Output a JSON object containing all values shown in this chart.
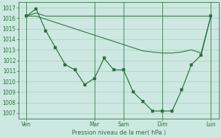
{
  "xlabel": "Pression niveau de la mer( hPa )",
  "bg_color": "#cce8e0",
  "grid_color": "#aaccc4",
  "line_color": "#2d6e40",
  "ylim": [
    1006.5,
    1017.5
  ],
  "yticks": [
    1007,
    1008,
    1009,
    1010,
    1011,
    1012,
    1013,
    1014,
    1015,
    1016,
    1017
  ],
  "xlim": [
    -0.3,
    20.3
  ],
  "day_labels": [
    "Ven",
    "Mar",
    "Sam",
    "Dim",
    "Lun"
  ],
  "day_positions": [
    0.5,
    7.5,
    10.5,
    14.5,
    19.5
  ],
  "line1_x": [
    0.5,
    1.5,
    2.5,
    3.5,
    4.5,
    5.5,
    6.5,
    7.5,
    8.5,
    9.5,
    10.5,
    11.5,
    12.5,
    13.5,
    14.5,
    15.5,
    16.5,
    17.5,
    18.5,
    19.5
  ],
  "line1_y": [
    1016.2,
    1016.9,
    1014.8,
    1013.2,
    1011.6,
    1011.1,
    1009.7,
    1010.3,
    1012.2,
    1011.1,
    1011.1,
    1009.0,
    1008.1,
    1007.2,
    1007.2,
    1007.2,
    1009.2,
    1011.6,
    1012.5,
    1016.2
  ],
  "line2_x": [
    0.5,
    1.5,
    2.5,
    3.5,
    4.5,
    5.5,
    6.5,
    7.5,
    8.5,
    9.5,
    10.5,
    11.5,
    12.5,
    13.5,
    14.5,
    15.5,
    16.5,
    17.5,
    18.5,
    19.5
  ],
  "line2_y": [
    1016.2,
    1016.5,
    1016.2,
    1016.2,
    1016.2,
    1016.2,
    1016.2,
    1016.2,
    1016.2,
    1016.2,
    1016.2,
    1016.2,
    1016.2,
    1016.2,
    1016.2,
    1016.2,
    1016.2,
    1016.2,
    1016.2,
    1016.2
  ],
  "line3_x": [
    0.5,
    1.5,
    2.5,
    3.5,
    4.5,
    5.5,
    6.5,
    7.5,
    8.5,
    9.5,
    10.5,
    11.5,
    12.5,
    13.5,
    14.5,
    15.5,
    16.5,
    17.5,
    18.5,
    19.5
  ],
  "line3_y": [
    1016.2,
    1016.2,
    1015.9,
    1015.6,
    1015.3,
    1015.0,
    1014.7,
    1014.4,
    1014.1,
    1013.8,
    1013.5,
    1013.2,
    1012.9,
    1012.8,
    1012.7,
    1012.7,
    1012.8,
    1013.0,
    1012.7,
    1016.2
  ]
}
